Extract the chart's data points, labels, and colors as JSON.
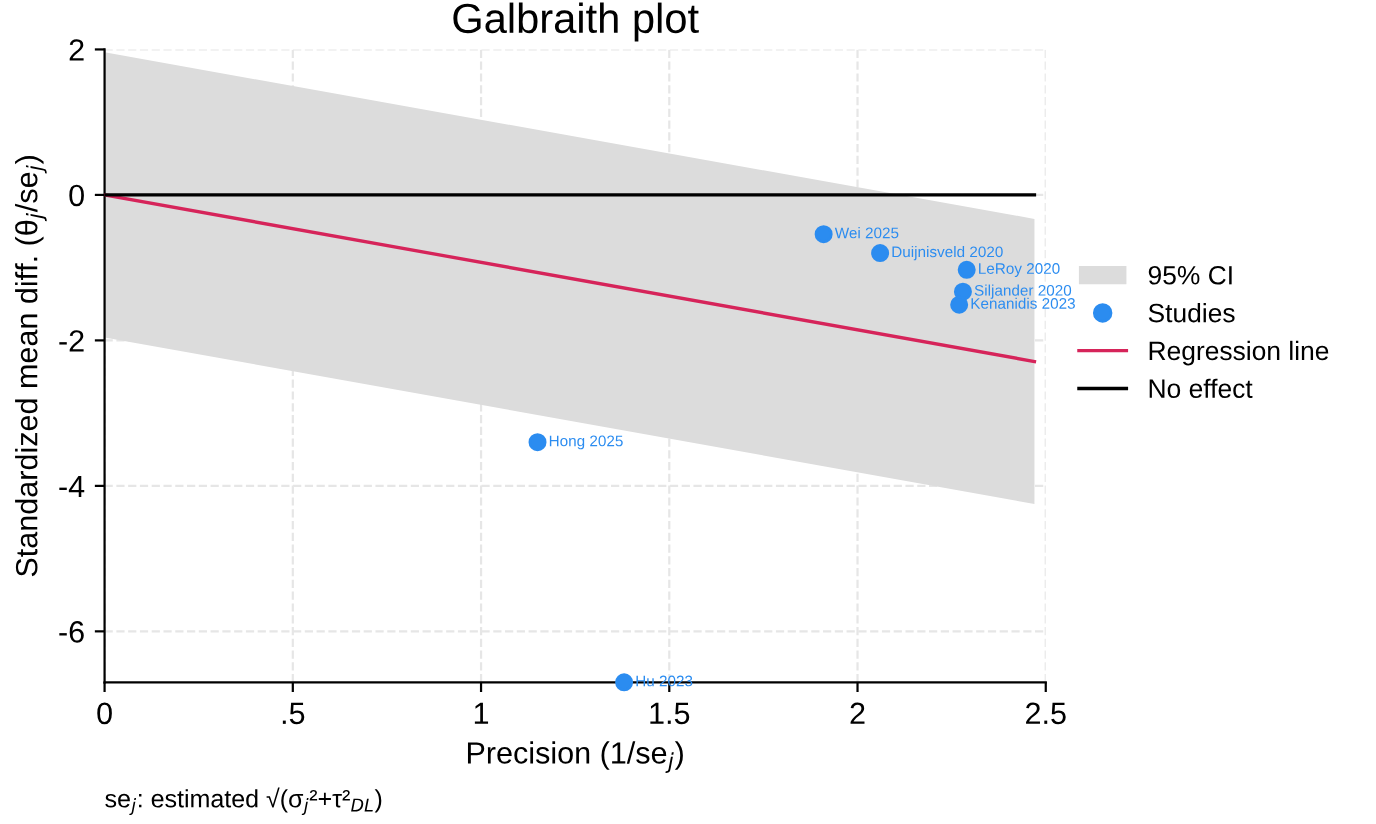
{
  "chart_data": {
    "type": "scatter",
    "title": "Galbraith plot",
    "xlabel": "Precision (1/se$_{j}$)",
    "ylabel": "Standardized mean diff. (θ$_{j}$/se$_{j}$)",
    "xlim": [
      0,
      2.5
    ],
    "ylim": [
      -6.7,
      2
    ],
    "xticks": [
      0,
      {
        "value": 0.5,
        "label": ".5"
      },
      1,
      1.5,
      2,
      2.5
    ],
    "yticks": [
      -6,
      -4,
      -2,
      0,
      2
    ],
    "grid": true,
    "legend": "right",
    "series": [
      {
        "name": "95% CI",
        "type": "area",
        "color": "#dcdcdc",
        "x": [
          0,
          2.47,
          2.47,
          0
        ],
        "values": [
          1.96,
          -0.33,
          -4.25,
          -1.96
        ]
      },
      {
        "name": "Studies",
        "type": "scatter",
        "marker": "circle",
        "color": "#2b8cf0",
        "x": [
          1.91,
          2.06,
          2.29,
          2.28,
          2.27,
          1.15,
          1.38
        ],
        "values": [
          -0.54,
          -0.8,
          -1.03,
          -1.33,
          -1.51,
          -3.4,
          -6.7
        ]
      },
      {
        "name": "Regression line",
        "type": "line",
        "color": "#d6245a",
        "x": [
          0,
          2.47
        ],
        "values": [
          0,
          -2.29
        ]
      },
      {
        "name": "No effect",
        "type": "line",
        "color": "#000000",
        "x": [
          0,
          2.47
        ],
        "values": [
          0,
          0
        ]
      }
    ],
    "annotations": [
      {
        "text": "Wei 2025",
        "x": 1.91,
        "y": -0.54
      },
      {
        "text": "Duijnisveld 2020",
        "x": 2.06,
        "y": -0.8
      },
      {
        "text": "LeRoy 2020",
        "x": 2.29,
        "y": -1.03
      },
      {
        "text": "Siljander 2020",
        "x": 2.28,
        "y": -1.33
      },
      {
        "text": "Kenanidis 2023",
        "x": 2.27,
        "y": -1.51
      },
      {
        "text": "Hong 2025",
        "x": 1.15,
        "y": -3.4
      },
      {
        "text": "Hu 2023",
        "x": 1.38,
        "y": -6.7
      },
      "se$_{j}$: estimated √(σ$_{j}$²+τ²$_{DL}$)"
    ]
  }
}
